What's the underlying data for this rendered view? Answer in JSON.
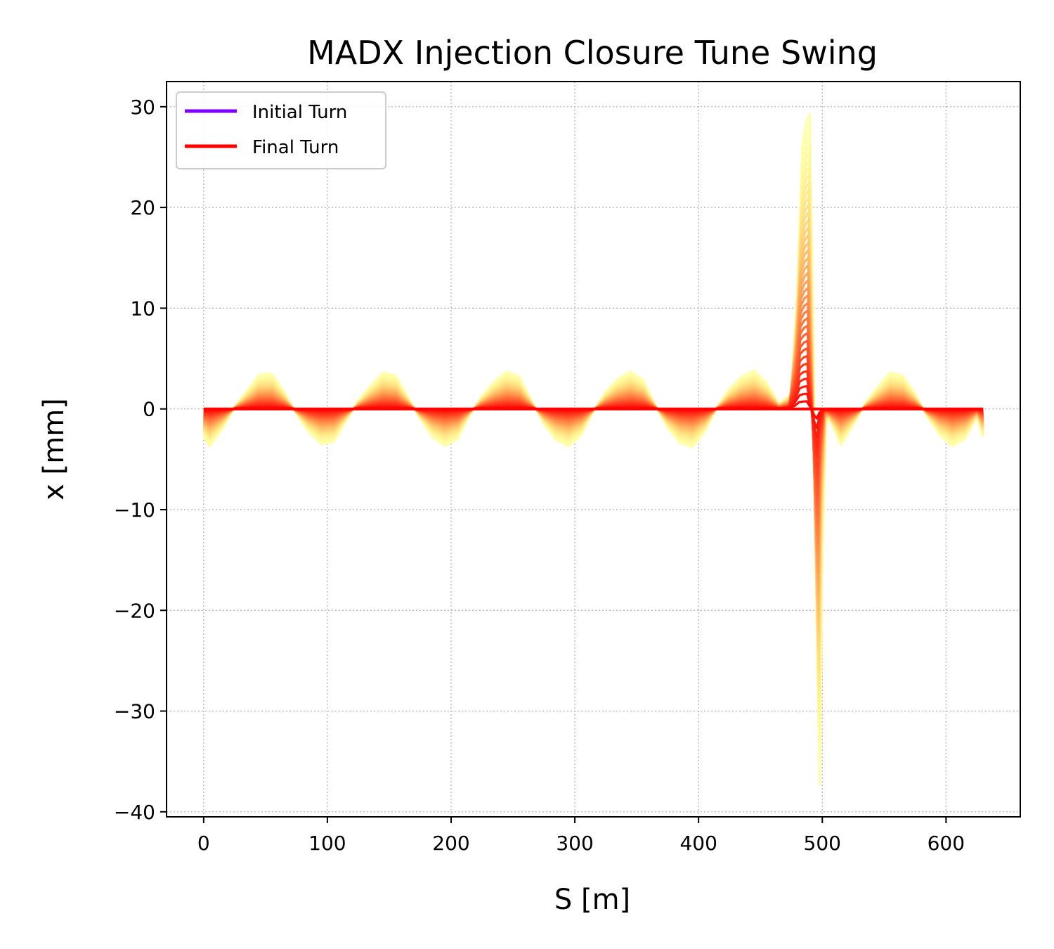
{
  "chart_data": {
    "type": "line",
    "title": "MADX Injection Closure Tune Swing",
    "xlabel": "S [m]",
    "ylabel": "x [mm]",
    "xlim": [
      -30,
      660
    ],
    "ylim": [
      -40.5,
      32.5
    ],
    "xticks": [
      0,
      100,
      200,
      300,
      400,
      500,
      600
    ],
    "yticks": [
      30,
      20,
      10,
      0,
      -10,
      -20,
      -30,
      -40
    ],
    "xtick_labels": [
      "0",
      "100",
      "200",
      "300",
      "400",
      "500",
      "600"
    ],
    "ytick_labels": [
      "30",
      "20",
      "10",
      "0",
      "−10",
      "−20",
      "−30",
      "−40"
    ],
    "grid": true,
    "legend_position": "top-left",
    "colormap": "rainbow",
    "series_count": 40,
    "legend": [
      {
        "label": "Initial Turn",
        "color": "#8000ff"
      },
      {
        "label": "Final Turn",
        "color": "#ff0000"
      }
    ],
    "envelope_max_turn": {
      "x": [
        0,
        5,
        15,
        25,
        35,
        45,
        55,
        65,
        75,
        85,
        95,
        105,
        115,
        125,
        135,
        145,
        155,
        165,
        175,
        185,
        195,
        205,
        215,
        225,
        235,
        245,
        255,
        265,
        275,
        285,
        295,
        305,
        315,
        325,
        335,
        345,
        355,
        365,
        375,
        385,
        395,
        405,
        415,
        425,
        435,
        445,
        455,
        465,
        475,
        480,
        484,
        487,
        490,
        493,
        496,
        498,
        500,
        503,
        506,
        515,
        525,
        535,
        545,
        555,
        565,
        575,
        585,
        595,
        605,
        615,
        625,
        630
      ],
      "y": [
        -2.8,
        -3.7,
        -2.0,
        0.2,
        1.8,
        3.4,
        3.5,
        1.7,
        -0.5,
        -2.3,
        -3.5,
        -3.3,
        -1.2,
        0.8,
        2.3,
        3.6,
        3.3,
        1.2,
        -1.0,
        -2.8,
        -3.7,
        -3.0,
        -0.6,
        1.3,
        2.7,
        3.7,
        3.2,
        0.8,
        -1.5,
        -3.1,
        -3.7,
        -2.6,
        -0.2,
        1.7,
        3.0,
        3.7,
        2.9,
        0.4,
        -1.9,
        -3.4,
        -3.8,
        -2.3,
        0.2,
        2.0,
        3.2,
        3.8,
        2.6,
        0.5,
        1.5,
        12.0,
        26.5,
        28.5,
        29.3,
        5.0,
        -25.0,
        -37.3,
        -15.0,
        -1.5,
        -1.0,
        -3.6,
        -1.6,
        0.6,
        2.2,
        3.6,
        3.3,
        1.5,
        -0.8,
        -2.6,
        -3.7,
        -3.0,
        -0.8,
        -2.8
      ]
    }
  }
}
